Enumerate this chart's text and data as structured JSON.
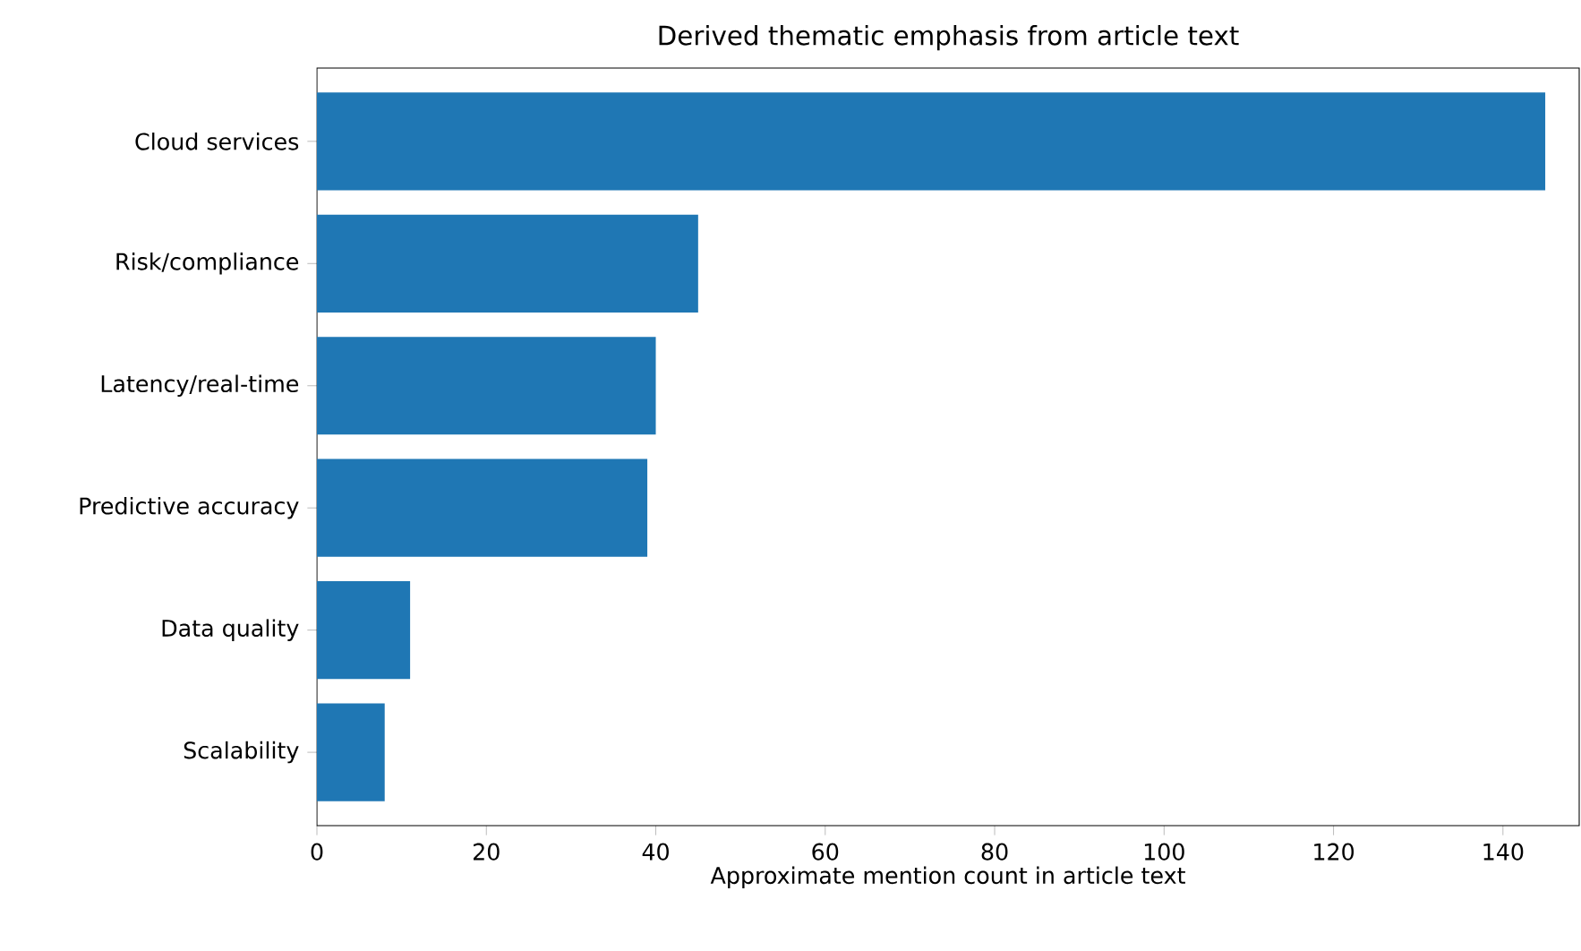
{
  "chart_data": {
    "type": "bar",
    "orientation": "horizontal",
    "title": "Derived thematic emphasis from article text",
    "xlabel": "Approximate mention count in article text",
    "categories": [
      "Cloud services",
      "Risk/compliance",
      "Latency/real-time",
      "Predictive accuracy",
      "Data quality",
      "Scalability"
    ],
    "values": [
      145,
      45,
      40,
      39,
      11,
      8
    ],
    "color": "#1f77b4",
    "xlim": [
      0,
      149
    ],
    "xticks": [
      0,
      20,
      40,
      60,
      80,
      100,
      120,
      140
    ],
    "grid": false
  }
}
